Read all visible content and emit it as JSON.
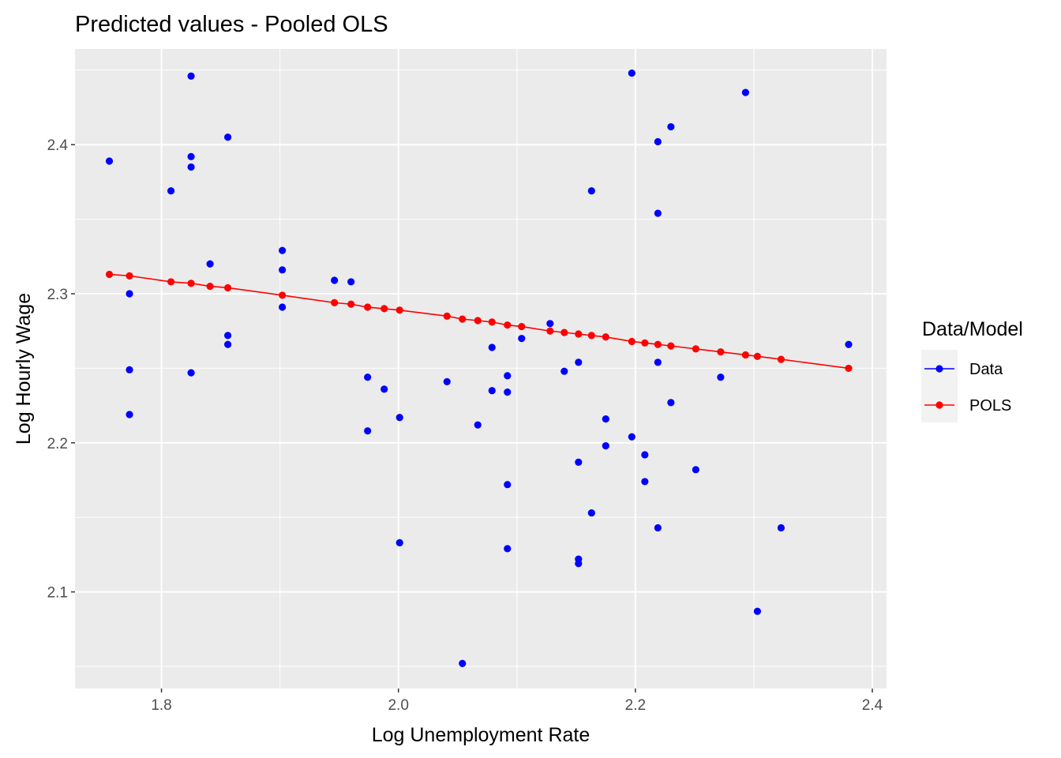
{
  "chart_data": {
    "type": "scatter",
    "title": "Predicted values - Pooled OLS",
    "xlabel": "Log Unemployment Rate",
    "ylabel": "Log Hourly Wage",
    "xlim": [
      1.727,
      2.412
    ],
    "ylim": [
      2.0352,
      2.4642
    ],
    "x_ticks": [
      1.8,
      2.0,
      2.2,
      2.4
    ],
    "x_tick_labels": [
      "1.8",
      "2.0",
      "2.2",
      "2.4"
    ],
    "y_ticks": [
      2.1,
      2.2,
      2.3,
      2.4
    ],
    "y_tick_labels": [
      "2.1",
      "2.2",
      "2.3",
      "2.4"
    ],
    "grid": true,
    "legend": {
      "title": "Data/Model",
      "position": "right",
      "entries": [
        {
          "label": "Data",
          "color": "#0000ff"
        },
        {
          "label": "POLS",
          "color": "#ff0000"
        }
      ]
    },
    "series": [
      {
        "name": "Data",
        "color": "#0000ff",
        "mode": "points",
        "points": [
          [
            1.756,
            2.389
          ],
          [
            1.773,
            2.3
          ],
          [
            1.773,
            2.249
          ],
          [
            1.773,
            2.219
          ],
          [
            1.808,
            2.369
          ],
          [
            1.825,
            2.446
          ],
          [
            1.825,
            2.392
          ],
          [
            1.825,
            2.385
          ],
          [
            1.825,
            2.247
          ],
          [
            1.841,
            2.32
          ],
          [
            1.856,
            2.405
          ],
          [
            1.856,
            2.272
          ],
          [
            1.856,
            2.266
          ],
          [
            1.902,
            2.329
          ],
          [
            1.902,
            2.316
          ],
          [
            1.902,
            2.291
          ],
          [
            1.946,
            2.309
          ],
          [
            1.96,
            2.308
          ],
          [
            1.974,
            2.244
          ],
          [
            1.974,
            2.208
          ],
          [
            1.988,
            2.236
          ],
          [
            2.001,
            2.217
          ],
          [
            2.001,
            2.133
          ],
          [
            2.041,
            2.241
          ],
          [
            2.054,
            2.052
          ],
          [
            2.067,
            2.212
          ],
          [
            2.079,
            2.264
          ],
          [
            2.079,
            2.235
          ],
          [
            2.092,
            2.245
          ],
          [
            2.092,
            2.234
          ],
          [
            2.092,
            2.172
          ],
          [
            2.092,
            2.129
          ],
          [
            2.104,
            2.27
          ],
          [
            2.128,
            2.28
          ],
          [
            2.14,
            2.248
          ],
          [
            2.152,
            2.254
          ],
          [
            2.152,
            2.187
          ],
          [
            2.152,
            2.122
          ],
          [
            2.152,
            2.119
          ],
          [
            2.163,
            2.369
          ],
          [
            2.163,
            2.153
          ],
          [
            2.175,
            2.216
          ],
          [
            2.175,
            2.198
          ],
          [
            2.197,
            2.448
          ],
          [
            2.197,
            2.204
          ],
          [
            2.208,
            2.192
          ],
          [
            2.208,
            2.174
          ],
          [
            2.219,
            2.402
          ],
          [
            2.219,
            2.354
          ],
          [
            2.219,
            2.254
          ],
          [
            2.219,
            2.143
          ],
          [
            2.23,
            2.412
          ],
          [
            2.23,
            2.227
          ],
          [
            2.251,
            2.182
          ],
          [
            2.272,
            2.244
          ],
          [
            2.293,
            2.435
          ],
          [
            2.303,
            2.087
          ],
          [
            2.323,
            2.143
          ],
          [
            2.38,
            2.266
          ]
        ]
      },
      {
        "name": "POLS",
        "color": "#ff0000",
        "mode": "lines+points",
        "points": [
          [
            1.756,
            2.313
          ],
          [
            1.773,
            2.312
          ],
          [
            1.808,
            2.308
          ],
          [
            1.825,
            2.307
          ],
          [
            1.841,
            2.305
          ],
          [
            1.856,
            2.304
          ],
          [
            1.902,
            2.299
          ],
          [
            1.946,
            2.294
          ],
          [
            1.96,
            2.293
          ],
          [
            1.974,
            2.291
          ],
          [
            1.988,
            2.29
          ],
          [
            2.001,
            2.289
          ],
          [
            2.041,
            2.285
          ],
          [
            2.054,
            2.283
          ],
          [
            2.067,
            2.282
          ],
          [
            2.079,
            2.281
          ],
          [
            2.092,
            2.279
          ],
          [
            2.104,
            2.278
          ],
          [
            2.128,
            2.275
          ],
          [
            2.14,
            2.274
          ],
          [
            2.152,
            2.273
          ],
          [
            2.163,
            2.272
          ],
          [
            2.175,
            2.271
          ],
          [
            2.197,
            2.268
          ],
          [
            2.208,
            2.267
          ],
          [
            2.219,
            2.266
          ],
          [
            2.23,
            2.265
          ],
          [
            2.251,
            2.263
          ],
          [
            2.272,
            2.261
          ],
          [
            2.293,
            2.259
          ],
          [
            2.303,
            2.258
          ],
          [
            2.323,
            2.256
          ],
          [
            2.38,
            2.25
          ]
        ]
      }
    ]
  }
}
